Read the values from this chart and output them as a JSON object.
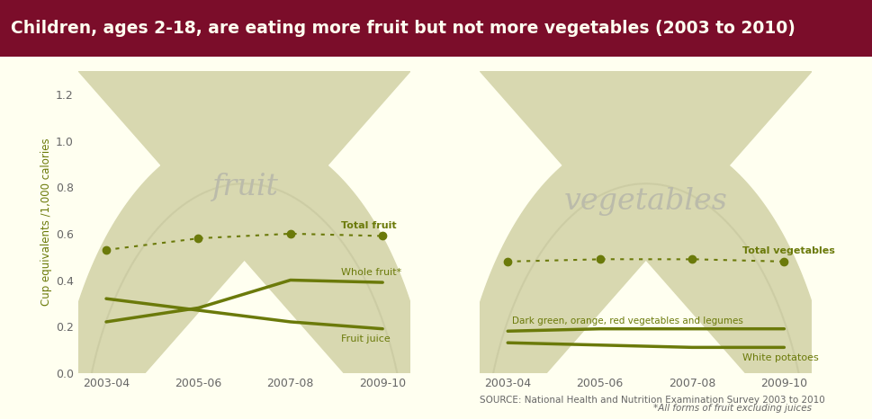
{
  "title": "Children, ages 2-18, are eating more fruit but not more vegetables (2003 to 2010)",
  "title_bg_color": "#7B0D2A",
  "title_text_color": "#FFFFF0",
  "bg_color": "#FFFFF0",
  "bowl_color": "#D8D8B0",
  "bowl_edge_color": "#C8C8A0",
  "line_color": "#6B7A0A",
  "dot_color": "#6B7A0A",
  "text_color": "#6B7A0A",
  "panel_text_color": "#AAAAAA",
  "axis_text_color": "#666666",
  "x_labels": [
    "2003-04",
    "2005-06",
    "2007-08",
    "2009-10"
  ],
  "x_values": [
    0,
    1,
    2,
    3
  ],
  "fruit_total": [
    0.53,
    0.58,
    0.6,
    0.59
  ],
  "whole_fruit": [
    0.22,
    0.28,
    0.4,
    0.39
  ],
  "fruit_juice": [
    0.32,
    0.27,
    0.22,
    0.19
  ],
  "veg_total": [
    0.48,
    0.49,
    0.49,
    0.48
  ],
  "dark_green_veg": [
    0.18,
    0.19,
    0.19,
    0.19
  ],
  "white_potatoes": [
    0.13,
    0.12,
    0.11,
    0.11
  ],
  "ylabel": "Cup equivalents /1,000 calories",
  "ylim": [
    0.0,
    1.3
  ],
  "yticks": [
    0.0,
    0.2,
    0.4,
    0.6,
    0.8,
    1.0,
    1.2
  ],
  "source_text": "SOURCE: National Health and Nutrition Examination Survey 2003 to 2010",
  "footnote_text": "*All forms of fruit excluding juices",
  "fruit_label": "fruit",
  "veg_label": "vegetables",
  "label_total_fruit": "Total fruit",
  "label_whole_fruit": "Whole fruit*",
  "label_fruit_juice": "Fruit juice",
  "label_total_veg": "Total vegetables",
  "label_dark_veg": "Dark green, orange, red vegetables and legumes",
  "label_white_pot": "White potatoes"
}
